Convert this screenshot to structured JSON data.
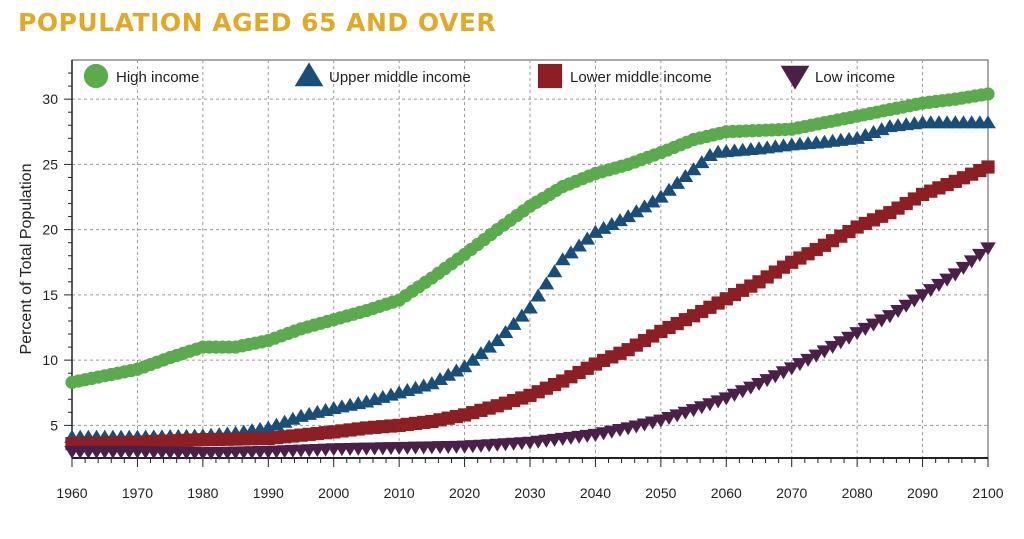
{
  "title": "POPULATION AGED 65 AND OVER",
  "colors": {
    "title": "#E2A928",
    "high": "#5BAA4E",
    "upper_middle": "#1A4E7A",
    "lower_middle": "#8B1F24",
    "low": "#4A2048",
    "grid": "#9a9a9a"
  },
  "chart_data": {
    "type": "scatter",
    "title": "POPULATION AGED 65 AND OVER",
    "xlabel": "",
    "ylabel": "Percent of Total Population",
    "xlim": [
      1960,
      2100
    ],
    "ylim": [
      2.5,
      33
    ],
    "x_ticks": [
      1960,
      1970,
      1980,
      1990,
      2000,
      2010,
      2020,
      2030,
      2040,
      2050,
      2060,
      2070,
      2080,
      2090,
      2100
    ],
    "y_ticks": [
      5,
      10,
      15,
      20,
      25,
      30
    ],
    "grid": true,
    "legend_position": "top",
    "series": [
      {
        "name": "High income",
        "marker": "circle",
        "color": "#5BAA4E",
        "x": [
          1960,
          1970,
          1975,
          1980,
          1985,
          1990,
          1995,
          2000,
          2005,
          2010,
          2015,
          2020,
          2025,
          2030,
          2035,
          2040,
          2045,
          2050,
          2055,
          2060,
          2065,
          2070,
          2075,
          2080,
          2085,
          2090,
          2095,
          2100
        ],
        "y": [
          8.3,
          9.3,
          10.2,
          11.0,
          11.0,
          11.5,
          12.4,
          13.1,
          13.8,
          14.6,
          16.3,
          18.1,
          20.0,
          21.8,
          23.3,
          24.3,
          25.0,
          25.9,
          26.9,
          27.5,
          27.6,
          27.7,
          28.2,
          28.7,
          29.2,
          29.7,
          30.0,
          30.4
        ]
      },
      {
        "name": "Upper middle income",
        "marker": "triangle-up",
        "color": "#1A4E7A",
        "x": [
          1960,
          1970,
          1980,
          1985,
          1990,
          1995,
          2000,
          2005,
          2010,
          2015,
          2020,
          2025,
          2030,
          2035,
          2040,
          2045,
          2050,
          2055,
          2058,
          2065,
          2070,
          2075,
          2080,
          2085,
          2090,
          2095,
          2100
        ],
        "y": [
          4.1,
          4.1,
          4.2,
          4.4,
          4.8,
          5.7,
          6.3,
          6.8,
          7.5,
          8.2,
          9.5,
          11.5,
          14.0,
          17.7,
          19.8,
          21.0,
          22.5,
          24.6,
          25.9,
          26.2,
          26.5,
          26.7,
          27.0,
          27.9,
          28.2,
          28.2,
          28.2
        ]
      },
      {
        "name": "Lower middle income",
        "marker": "square",
        "color": "#8B1F24",
        "x": [
          1960,
          1970,
          1980,
          1990,
          2000,
          2005,
          2010,
          2015,
          2020,
          2025,
          2030,
          2035,
          2040,
          2045,
          2050,
          2055,
          2060,
          2065,
          2070,
          2075,
          2080,
          2085,
          2090,
          2095,
          2100
        ],
        "y": [
          3.6,
          3.7,
          3.9,
          4.0,
          4.5,
          4.8,
          5.0,
          5.3,
          5.8,
          6.5,
          7.3,
          8.4,
          9.7,
          10.8,
          12.2,
          13.4,
          14.7,
          16.0,
          17.5,
          18.8,
          20.2,
          21.3,
          22.7,
          23.7,
          24.8
        ]
      },
      {
        "name": "Low income",
        "marker": "triangle-down",
        "color": "#4A2048",
        "x": [
          1960,
          1970,
          1980,
          1990,
          2000,
          2010,
          2020,
          2030,
          2040,
          2045,
          2050,
          2055,
          2060,
          2065,
          2070,
          2075,
          2080,
          2085,
          2090,
          2095,
          2100
        ],
        "y": [
          3.0,
          3.0,
          2.9,
          3.0,
          3.2,
          3.3,
          3.4,
          3.7,
          4.3,
          4.8,
          5.4,
          6.2,
          7.1,
          8.2,
          9.4,
          10.7,
          12.1,
          13.4,
          15.0,
          16.6,
          18.6
        ]
      }
    ]
  }
}
